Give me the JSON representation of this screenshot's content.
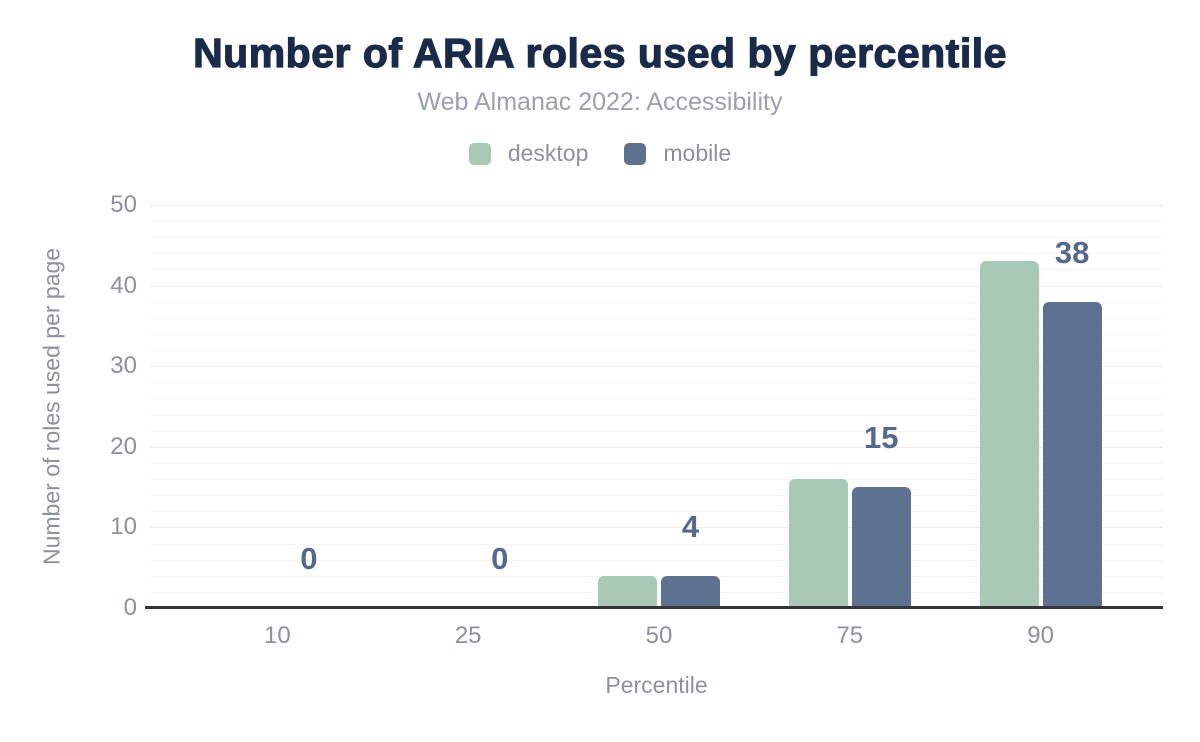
{
  "header": {
    "title": "Number of ARIA roles used by percentile",
    "subtitle": "Web Almanac 2022: Accessibility"
  },
  "chart_data": {
    "type": "bar",
    "title": "Number of ARIA roles used by percentile",
    "subtitle": "Web Almanac 2022: Accessibility",
    "categories": [
      "10",
      "25",
      "50",
      "75",
      "90"
    ],
    "series": [
      {
        "name": "desktop",
        "color": "#a7c9b6",
        "values": [
          0,
          0,
          4,
          16,
          43
        ]
      },
      {
        "name": "mobile",
        "color": "#5f7190",
        "values": [
          0,
          0,
          4,
          15,
          38
        ]
      }
    ],
    "data_labels": {
      "series": "mobile",
      "values": [
        "0",
        "0",
        "4",
        "15",
        "38"
      ],
      "color": "#56688b"
    },
    "xlabel": "Percentile",
    "ylabel": "Number of roles used per page",
    "ylim": [
      0,
      50
    ],
    "yticks": [
      0,
      10,
      20,
      30,
      40,
      50
    ],
    "grid": {
      "minor_step": 2,
      "major_step": 10,
      "minor_color": "#f7f7f7",
      "major_color": "#ececec"
    },
    "legend_position": "top",
    "axis_line_color": "#343539",
    "text_colors": {
      "title": "#1a2b49",
      "subtitle": "#9aa1a8",
      "axis": "#8b929a"
    }
  }
}
